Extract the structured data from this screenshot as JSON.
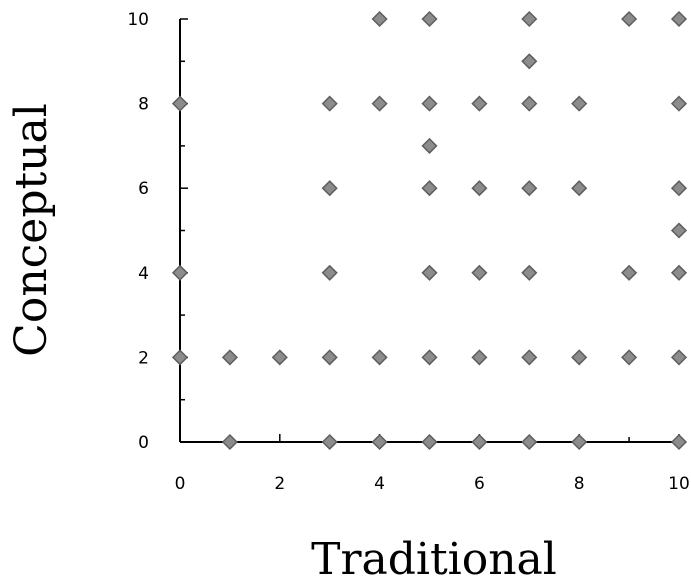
{
  "chart_data": {
    "type": "scatter",
    "title": "",
    "xlabel": "Traditional",
    "ylabel": "Conceptual",
    "xlim": [
      0,
      10
    ],
    "ylim": [
      0,
      10
    ],
    "xticks": [
      "0",
      "2",
      "4",
      "6",
      "8",
      "10"
    ],
    "yticks": [
      "0",
      "2",
      "4",
      "6",
      "8",
      "10"
    ],
    "grid": false,
    "legend": "none",
    "marker": "gray diamond-dot",
    "colors": {
      "point_fill": "#8c8c8c",
      "point_stroke": "#5e5e5e",
      "axis": "#000000"
    },
    "points": [
      {
        "x": 4,
        "y": 10
      },
      {
        "x": 5,
        "y": 10
      },
      {
        "x": 7,
        "y": 10
      },
      {
        "x": 9,
        "y": 10
      },
      {
        "x": 10,
        "y": 10
      },
      {
        "x": 7,
        "y": 9
      },
      {
        "x": 0,
        "y": 8
      },
      {
        "x": 3,
        "y": 8
      },
      {
        "x": 4,
        "y": 8
      },
      {
        "x": 5,
        "y": 8
      },
      {
        "x": 6,
        "y": 8
      },
      {
        "x": 7,
        "y": 8
      },
      {
        "x": 8,
        "y": 8
      },
      {
        "x": 10,
        "y": 8
      },
      {
        "x": 5,
        "y": 7
      },
      {
        "x": 3,
        "y": 6
      },
      {
        "x": 5,
        "y": 6
      },
      {
        "x": 6,
        "y": 6
      },
      {
        "x": 7,
        "y": 6
      },
      {
        "x": 8,
        "y": 6
      },
      {
        "x": 10,
        "y": 6
      },
      {
        "x": 10,
        "y": 5
      },
      {
        "x": 0,
        "y": 4
      },
      {
        "x": 3,
        "y": 4
      },
      {
        "x": 5,
        "y": 4
      },
      {
        "x": 6,
        "y": 4
      },
      {
        "x": 7,
        "y": 4
      },
      {
        "x": 9,
        "y": 4
      },
      {
        "x": 10,
        "y": 4
      },
      {
        "x": 0,
        "y": 2
      },
      {
        "x": 1,
        "y": 2
      },
      {
        "x": 2,
        "y": 2
      },
      {
        "x": 3,
        "y": 2
      },
      {
        "x": 4,
        "y": 2
      },
      {
        "x": 5,
        "y": 2
      },
      {
        "x": 6,
        "y": 2
      },
      {
        "x": 7,
        "y": 2
      },
      {
        "x": 8,
        "y": 2
      },
      {
        "x": 9,
        "y": 2
      },
      {
        "x": 10,
        "y": 2
      },
      {
        "x": 1,
        "y": 0
      },
      {
        "x": 3,
        "y": 0
      },
      {
        "x": 4,
        "y": 0
      },
      {
        "x": 5,
        "y": 0
      },
      {
        "x": 6,
        "y": 0
      },
      {
        "x": 7,
        "y": 0
      },
      {
        "x": 8,
        "y": 0
      },
      {
        "x": 10,
        "y": 0
      }
    ]
  }
}
